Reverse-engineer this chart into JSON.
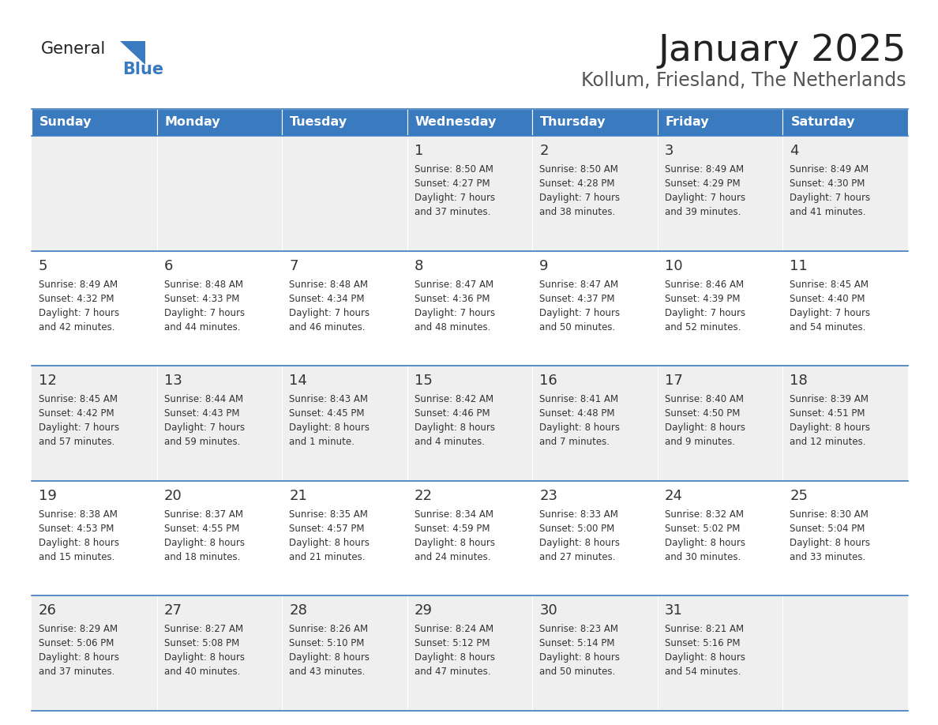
{
  "title": "January 2025",
  "subtitle": "Kollum, Friesland, The Netherlands",
  "days_of_week": [
    "Sunday",
    "Monday",
    "Tuesday",
    "Wednesday",
    "Thursday",
    "Friday",
    "Saturday"
  ],
  "header_bg": "#3a7abf",
  "header_text": "#ffffff",
  "row_bg_odd": "#efefef",
  "row_bg_even": "#ffffff",
  "border_color": "#3a7abf",
  "day_num_color": "#333333",
  "text_color": "#333333",
  "title_color": "#222222",
  "subtitle_color": "#555555",
  "logo_general_color": "#222222",
  "logo_blue_color": "#3a7abf",
  "triangle_color": "#3a7abf",
  "calendar": [
    [
      {
        "day": "",
        "sunrise": "",
        "sunset": "",
        "daylight": ""
      },
      {
        "day": "",
        "sunrise": "",
        "sunset": "",
        "daylight": ""
      },
      {
        "day": "",
        "sunrise": "",
        "sunset": "",
        "daylight": ""
      },
      {
        "day": "1",
        "sunrise": "8:50 AM",
        "sunset": "4:27 PM",
        "daylight": "7 hours and 37 minutes."
      },
      {
        "day": "2",
        "sunrise": "8:50 AM",
        "sunset": "4:28 PM",
        "daylight": "7 hours and 38 minutes."
      },
      {
        "day": "3",
        "sunrise": "8:49 AM",
        "sunset": "4:29 PM",
        "daylight": "7 hours and 39 minutes."
      },
      {
        "day": "4",
        "sunrise": "8:49 AM",
        "sunset": "4:30 PM",
        "daylight": "7 hours and 41 minutes."
      }
    ],
    [
      {
        "day": "5",
        "sunrise": "8:49 AM",
        "sunset": "4:32 PM",
        "daylight": "7 hours and 42 minutes."
      },
      {
        "day": "6",
        "sunrise": "8:48 AM",
        "sunset": "4:33 PM",
        "daylight": "7 hours and 44 minutes."
      },
      {
        "day": "7",
        "sunrise": "8:48 AM",
        "sunset": "4:34 PM",
        "daylight": "7 hours and 46 minutes."
      },
      {
        "day": "8",
        "sunrise": "8:47 AM",
        "sunset": "4:36 PM",
        "daylight": "7 hours and 48 minutes."
      },
      {
        "day": "9",
        "sunrise": "8:47 AM",
        "sunset": "4:37 PM",
        "daylight": "7 hours and 50 minutes."
      },
      {
        "day": "10",
        "sunrise": "8:46 AM",
        "sunset": "4:39 PM",
        "daylight": "7 hours and 52 minutes."
      },
      {
        "day": "11",
        "sunrise": "8:45 AM",
        "sunset": "4:40 PM",
        "daylight": "7 hours and 54 minutes."
      }
    ],
    [
      {
        "day": "12",
        "sunrise": "8:45 AM",
        "sunset": "4:42 PM",
        "daylight": "7 hours and 57 minutes."
      },
      {
        "day": "13",
        "sunrise": "8:44 AM",
        "sunset": "4:43 PM",
        "daylight": "7 hours and 59 minutes."
      },
      {
        "day": "14",
        "sunrise": "8:43 AM",
        "sunset": "4:45 PM",
        "daylight": "8 hours and 1 minute."
      },
      {
        "day": "15",
        "sunrise": "8:42 AM",
        "sunset": "4:46 PM",
        "daylight": "8 hours and 4 minutes."
      },
      {
        "day": "16",
        "sunrise": "8:41 AM",
        "sunset": "4:48 PM",
        "daylight": "8 hours and 7 minutes."
      },
      {
        "day": "17",
        "sunrise": "8:40 AM",
        "sunset": "4:50 PM",
        "daylight": "8 hours and 9 minutes."
      },
      {
        "day": "18",
        "sunrise": "8:39 AM",
        "sunset": "4:51 PM",
        "daylight": "8 hours and 12 minutes."
      }
    ],
    [
      {
        "day": "19",
        "sunrise": "8:38 AM",
        "sunset": "4:53 PM",
        "daylight": "8 hours and 15 minutes."
      },
      {
        "day": "20",
        "sunrise": "8:37 AM",
        "sunset": "4:55 PM",
        "daylight": "8 hours and 18 minutes."
      },
      {
        "day": "21",
        "sunrise": "8:35 AM",
        "sunset": "4:57 PM",
        "daylight": "8 hours and 21 minutes."
      },
      {
        "day": "22",
        "sunrise": "8:34 AM",
        "sunset": "4:59 PM",
        "daylight": "8 hours and 24 minutes."
      },
      {
        "day": "23",
        "sunrise": "8:33 AM",
        "sunset": "5:00 PM",
        "daylight": "8 hours and 27 minutes."
      },
      {
        "day": "24",
        "sunrise": "8:32 AM",
        "sunset": "5:02 PM",
        "daylight": "8 hours and 30 minutes."
      },
      {
        "day": "25",
        "sunrise": "8:30 AM",
        "sunset": "5:04 PM",
        "daylight": "8 hours and 33 minutes."
      }
    ],
    [
      {
        "day": "26",
        "sunrise": "8:29 AM",
        "sunset": "5:06 PM",
        "daylight": "8 hours and 37 minutes."
      },
      {
        "day": "27",
        "sunrise": "8:27 AM",
        "sunset": "5:08 PM",
        "daylight": "8 hours and 40 minutes."
      },
      {
        "day": "28",
        "sunrise": "8:26 AM",
        "sunset": "5:10 PM",
        "daylight": "8 hours and 43 minutes."
      },
      {
        "day": "29",
        "sunrise": "8:24 AM",
        "sunset": "5:12 PM",
        "daylight": "8 hours and 47 minutes."
      },
      {
        "day": "30",
        "sunrise": "8:23 AM",
        "sunset": "5:14 PM",
        "daylight": "8 hours and 50 minutes."
      },
      {
        "day": "31",
        "sunrise": "8:21 AM",
        "sunset": "5:16 PM",
        "daylight": "8 hours and 54 minutes."
      },
      {
        "day": "",
        "sunrise": "",
        "sunset": "",
        "daylight": ""
      }
    ]
  ]
}
